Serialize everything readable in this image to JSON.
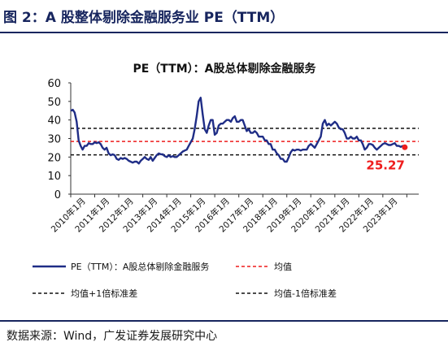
{
  "figure": {
    "label": "图 2：A 股整体剔除金融服务业 PE（TTM）",
    "source": "数据来源：Wind，广发证券发展研究中心"
  },
  "chart_data": {
    "type": "line",
    "title": "PE（TTM）：A股总体剔除金融服务",
    "ylim": [
      0,
      60
    ],
    "yticks": [
      0,
      5,
      10,
      15,
      20,
      25,
      30,
      35,
      40,
      45,
      50,
      55,
      60
    ],
    "xlim": [
      "2010-01-01",
      "2024-06-30"
    ],
    "x_tick_labels": [
      "2010年1月",
      "2011年1月",
      "2012年1月",
      "2013年1月",
      "2014年1月",
      "2015年1月",
      "2016年1月",
      "2017年1月",
      "2018年1月",
      "2019年1月",
      "2020年1月",
      "2021年1月",
      "2022年1月",
      "2023年1月"
    ],
    "series": [
      {
        "name": "PE（TTM）：A股总体剔除金融服务",
        "style": "line",
        "color": "#1f2d86",
        "points": [
          [
            "2010-01-01",
            45
          ],
          [
            "2010-02-01",
            45.5
          ],
          [
            "2010-03-01",
            44
          ],
          [
            "2010-04-01",
            39
          ],
          [
            "2010-05-01",
            29
          ],
          [
            "2010-06-01",
            26
          ],
          [
            "2010-07-01",
            24
          ],
          [
            "2010-08-01",
            26
          ],
          [
            "2010-09-01",
            26
          ],
          [
            "2010-10-01",
            27.5
          ],
          [
            "2010-11-01",
            27
          ],
          [
            "2010-12-01",
            27
          ],
          [
            "2011-01-01",
            28
          ],
          [
            "2011-02-01",
            27.5
          ],
          [
            "2011-03-01",
            28
          ],
          [
            "2011-04-01",
            27
          ],
          [
            "2011-05-01",
            25
          ],
          [
            "2011-06-01",
            24
          ],
          [
            "2011-07-01",
            25
          ],
          [
            "2011-08-01",
            22
          ],
          [
            "2011-09-01",
            21
          ],
          [
            "2011-10-01",
            21.5
          ],
          [
            "2011-11-01",
            21
          ],
          [
            "2011-12-01",
            19
          ],
          [
            "2012-01-01",
            18.5
          ],
          [
            "2012-02-01",
            19.5
          ],
          [
            "2012-03-01",
            19
          ],
          [
            "2012-04-01",
            19.5
          ],
          [
            "2012-05-01",
            19
          ],
          [
            "2012-06-01",
            18
          ],
          [
            "2012-07-01",
            17.5
          ],
          [
            "2012-08-01",
            17
          ],
          [
            "2012-09-01",
            17.5
          ],
          [
            "2012-10-01",
            17.5
          ],
          [
            "2012-11-01",
            16.5
          ],
          [
            "2012-12-01",
            18
          ],
          [
            "2013-01-01",
            19
          ],
          [
            "2013-02-01",
            20
          ],
          [
            "2013-03-01",
            19
          ],
          [
            "2013-04-01",
            18.5
          ],
          [
            "2013-05-01",
            20
          ],
          [
            "2013-06-01",
            18
          ],
          [
            "2013-07-01",
            19.5
          ],
          [
            "2013-08-01",
            21
          ],
          [
            "2013-09-01",
            22
          ],
          [
            "2013-10-01",
            21.5
          ],
          [
            "2013-11-01",
            21.5
          ],
          [
            "2013-12-01",
            20.5
          ],
          [
            "2014-01-01",
            20
          ],
          [
            "2014-02-01",
            21
          ],
          [
            "2014-03-01",
            20
          ],
          [
            "2014-04-01",
            20.5
          ],
          [
            "2014-05-01",
            20
          ],
          [
            "2014-06-01",
            20
          ],
          [
            "2014-07-01",
            21
          ],
          [
            "2014-08-01",
            22
          ],
          [
            "2014-09-01",
            23
          ],
          [
            "2014-10-01",
            23.5
          ],
          [
            "2014-11-01",
            24
          ],
          [
            "2014-12-01",
            26
          ],
          [
            "2015-01-01",
            28
          ],
          [
            "2015-02-01",
            30
          ],
          [
            "2015-03-01",
            35
          ],
          [
            "2015-04-01",
            42
          ],
          [
            "2015-05-01",
            50
          ],
          [
            "2015-06-01",
            52
          ],
          [
            "2015-07-01",
            43
          ],
          [
            "2015-08-01",
            35
          ],
          [
            "2015-09-01",
            33
          ],
          [
            "2015-10-01",
            37
          ],
          [
            "2015-11-01",
            40
          ],
          [
            "2015-12-01",
            40
          ],
          [
            "2016-01-01",
            32
          ],
          [
            "2016-02-01",
            33
          ],
          [
            "2016-03-01",
            37
          ],
          [
            "2016-04-01",
            38
          ],
          [
            "2016-05-01",
            38
          ],
          [
            "2016-06-01",
            39
          ],
          [
            "2016-07-01",
            40
          ],
          [
            "2016-08-01",
            40
          ],
          [
            "2016-09-01",
            39
          ],
          [
            "2016-10-01",
            41
          ],
          [
            "2016-11-01",
            42
          ],
          [
            "2016-12-01",
            39
          ],
          [
            "2017-01-01",
            39
          ],
          [
            "2017-02-01",
            40
          ],
          [
            "2017-03-01",
            40
          ],
          [
            "2017-04-01",
            37
          ],
          [
            "2017-05-01",
            34
          ],
          [
            "2017-06-01",
            35
          ],
          [
            "2017-07-01",
            33
          ],
          [
            "2017-08-01",
            33
          ],
          [
            "2017-09-01",
            34
          ],
          [
            "2017-10-01",
            33
          ],
          [
            "2017-11-01",
            31
          ],
          [
            "2017-12-01",
            31
          ],
          [
            "2018-01-01",
            31
          ],
          [
            "2018-02-01",
            29
          ],
          [
            "2018-03-01",
            29
          ],
          [
            "2018-04-01",
            27
          ],
          [
            "2018-05-01",
            27
          ],
          [
            "2018-06-01",
            24
          ],
          [
            "2018-07-01",
            24
          ],
          [
            "2018-08-01",
            22
          ],
          [
            "2018-09-01",
            21
          ],
          [
            "2018-10-01",
            19
          ],
          [
            "2018-11-01",
            19
          ],
          [
            "2018-12-01",
            17.5
          ],
          [
            "2019-01-01",
            17.5
          ],
          [
            "2019-02-01",
            20
          ],
          [
            "2019-03-01",
            22.5
          ],
          [
            "2019-04-01",
            24
          ],
          [
            "2019-05-01",
            23.5
          ],
          [
            "2019-06-01",
            24
          ],
          [
            "2019-07-01",
            24
          ],
          [
            "2019-08-01",
            23.5
          ],
          [
            "2019-09-01",
            24
          ],
          [
            "2019-10-01",
            24
          ],
          [
            "2019-11-01",
            24
          ],
          [
            "2019-12-01",
            26
          ],
          [
            "2020-01-01",
            27
          ],
          [
            "2020-02-01",
            26
          ],
          [
            "2020-03-01",
            25
          ],
          [
            "2020-04-01",
            27
          ],
          [
            "2020-05-01",
            29
          ],
          [
            "2020-06-01",
            31
          ],
          [
            "2020-07-01",
            38
          ],
          [
            "2020-08-01",
            40
          ],
          [
            "2020-09-01",
            37
          ],
          [
            "2020-10-01",
            38
          ],
          [
            "2020-11-01",
            37
          ],
          [
            "2020-12-01",
            38
          ],
          [
            "2021-01-01",
            39
          ],
          [
            "2021-02-01",
            38
          ],
          [
            "2021-03-01",
            36
          ],
          [
            "2021-04-01",
            35
          ],
          [
            "2021-05-01",
            35
          ],
          [
            "2021-06-01",
            33
          ],
          [
            "2021-07-01",
            30
          ],
          [
            "2021-08-01",
            30
          ],
          [
            "2021-09-01",
            31
          ],
          [
            "2021-10-01",
            30
          ],
          [
            "2021-11-01",
            30
          ],
          [
            "2021-12-01",
            31
          ],
          [
            "2022-01-01",
            29
          ],
          [
            "2022-02-01",
            29
          ],
          [
            "2022-03-01",
            27
          ],
          [
            "2022-04-01",
            24
          ],
          [
            "2022-05-01",
            25
          ],
          [
            "2022-06-01",
            27
          ],
          [
            "2022-07-01",
            27
          ],
          [
            "2022-08-01",
            26.5
          ],
          [
            "2022-09-01",
            25
          ],
          [
            "2022-10-01",
            24
          ],
          [
            "2022-11-01",
            25
          ],
          [
            "2022-12-01",
            26
          ],
          [
            "2023-01-01",
            27
          ],
          [
            "2023-02-01",
            27.5
          ],
          [
            "2023-03-01",
            27
          ],
          [
            "2023-04-01",
            26.5
          ],
          [
            "2023-05-01",
            26.5
          ],
          [
            "2023-06-01",
            27
          ],
          [
            "2023-07-01",
            27.5
          ],
          [
            "2023-08-01",
            26
          ],
          [
            "2023-09-01",
            26
          ],
          [
            "2023-10-01",
            25.5
          ],
          [
            "2023-11-01",
            26
          ],
          [
            "2023-12-01",
            25.27
          ]
        ]
      },
      {
        "name": "均值",
        "style": "dashed",
        "color": "#ee1c1c",
        "value": 28.4
      },
      {
        "name": "均值+1倍标准差",
        "style": "dashed",
        "color": "#111111",
        "value": 35.5
      },
      {
        "name": "均值-1倍标准差",
        "style": "dashed",
        "color": "#111111",
        "value": 21.2
      }
    ],
    "annotations": [
      {
        "text": "25.27",
        "x": "2023-12-01",
        "y": 25.27,
        "color": "#ee1c1c"
      }
    ],
    "grid": false,
    "legend": "bottom"
  }
}
